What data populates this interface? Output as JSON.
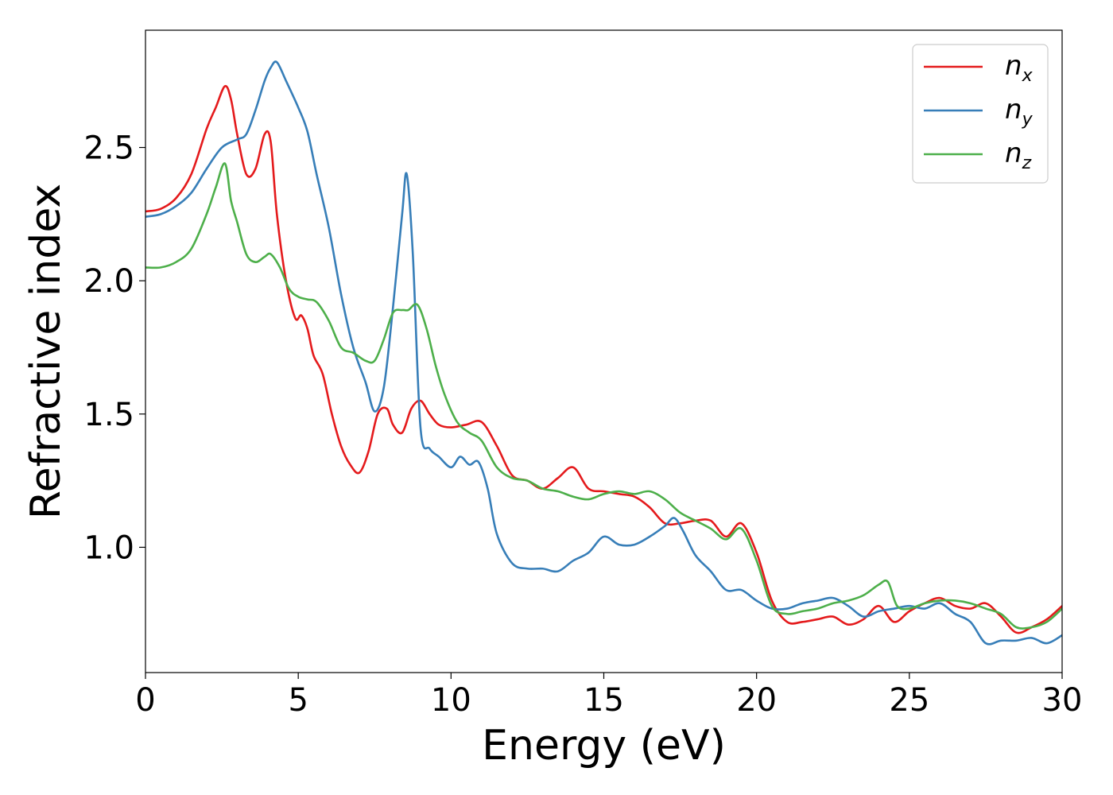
{
  "chart_data": {
    "type": "line",
    "title": "",
    "xlabel": "Energy (eV)",
    "ylabel": "Refractive index",
    "xlim": [
      0,
      30
    ],
    "ylim": [
      0.53,
      2.94
    ],
    "xticks": [
      "0",
      "5",
      "10",
      "15",
      "20",
      "25",
      "30"
    ],
    "xtick_values": [
      0,
      5,
      10,
      15,
      20,
      25,
      30
    ],
    "yticks": [
      "1.0",
      "1.5",
      "2.0",
      "2.5"
    ],
    "ytick_values": [
      1.0,
      1.5,
      2.0,
      2.5
    ],
    "grid": false,
    "legend_position": "top-right",
    "series": [
      {
        "name": "n_x",
        "legend_base": "n",
        "legend_sub": "x",
        "color": "#e41a1c",
        "x": [
          0,
          0.5,
          1,
          1.5,
          2,
          2.3,
          2.6,
          2.8,
          3,
          3.3,
          3.6,
          3.9,
          4.1,
          4.3,
          4.6,
          4.9,
          5.1,
          5.3,
          5.5,
          5.8,
          6.1,
          6.4,
          6.7,
          7.0,
          7.3,
          7.6,
          7.9,
          8.1,
          8.4,
          8.7,
          9.0,
          9.3,
          9.6,
          10.0,
          10.5,
          11.0,
          11.5,
          12.0,
          12.5,
          13.0,
          13.5,
          14.0,
          14.5,
          15.0,
          15.5,
          16.0,
          16.5,
          17.0,
          17.5,
          18.0,
          18.5,
          19.0,
          19.5,
          20.0,
          20.5,
          21.0,
          21.5,
          22.0,
          22.5,
          23.0,
          23.5,
          24.0,
          24.5,
          25.0,
          25.5,
          26.0,
          26.5,
          27.0,
          27.5,
          28.0,
          28.5,
          29.0,
          29.5,
          30.0
        ],
        "y": [
          2.26,
          2.27,
          2.31,
          2.4,
          2.57,
          2.65,
          2.73,
          2.68,
          2.55,
          2.4,
          2.42,
          2.55,
          2.52,
          2.25,
          2.0,
          1.86,
          1.87,
          1.82,
          1.72,
          1.65,
          1.5,
          1.38,
          1.31,
          1.28,
          1.36,
          1.5,
          1.52,
          1.46,
          1.43,
          1.52,
          1.55,
          1.5,
          1.46,
          1.45,
          1.46,
          1.47,
          1.38,
          1.27,
          1.25,
          1.22,
          1.26,
          1.3,
          1.22,
          1.21,
          1.2,
          1.19,
          1.15,
          1.09,
          1.09,
          1.1,
          1.1,
          1.04,
          1.09,
          0.98,
          0.8,
          0.72,
          0.72,
          0.73,
          0.74,
          0.71,
          0.73,
          0.78,
          0.72,
          0.76,
          0.79,
          0.81,
          0.78,
          0.77,
          0.79,
          0.74,
          0.68,
          0.7,
          0.73,
          0.78
        ]
      },
      {
        "name": "n_y",
        "legend_base": "n",
        "legend_sub": "y",
        "color": "#377eb8",
        "x": [
          0,
          0.5,
          1,
          1.5,
          2,
          2.5,
          3.0,
          3.3,
          3.6,
          3.9,
          4.1,
          4.3,
          4.6,
          5.0,
          5.3,
          5.6,
          6.0,
          6.4,
          6.8,
          7.2,
          7.5,
          7.8,
          8.1,
          8.4,
          8.55,
          8.75,
          9.0,
          9.3,
          9.6,
          10.0,
          10.3,
          10.6,
          10.9,
          11.2,
          11.5,
          12.0,
          12.5,
          13.0,
          13.5,
          14.0,
          14.5,
          15.0,
          15.5,
          16.0,
          16.5,
          17.0,
          17.3,
          17.6,
          18.0,
          18.5,
          19.0,
          19.5,
          20.0,
          20.5,
          21.0,
          21.5,
          22.0,
          22.5,
          23.0,
          23.5,
          24.0,
          24.5,
          25.0,
          25.5,
          26.0,
          26.5,
          27.0,
          27.5,
          28.0,
          28.5,
          29.0,
          29.5,
          30.0
        ],
        "y": [
          2.24,
          2.25,
          2.28,
          2.33,
          2.42,
          2.5,
          2.53,
          2.55,
          2.64,
          2.75,
          2.8,
          2.82,
          2.75,
          2.65,
          2.56,
          2.4,
          2.2,
          1.95,
          1.75,
          1.62,
          1.51,
          1.6,
          1.9,
          2.25,
          2.4,
          2.1,
          1.45,
          1.37,
          1.34,
          1.3,
          1.34,
          1.31,
          1.32,
          1.22,
          1.05,
          0.94,
          0.92,
          0.92,
          0.91,
          0.95,
          0.98,
          1.04,
          1.01,
          1.01,
          1.04,
          1.08,
          1.11,
          1.06,
          0.97,
          0.91,
          0.84,
          0.84,
          0.8,
          0.77,
          0.77,
          0.79,
          0.8,
          0.81,
          0.78,
          0.74,
          0.76,
          0.77,
          0.78,
          0.77,
          0.79,
          0.75,
          0.72,
          0.64,
          0.65,
          0.65,
          0.66,
          0.64,
          0.67
        ]
      },
      {
        "name": "n_z",
        "legend_base": "n",
        "legend_sub": "z",
        "color": "#4daf4a",
        "x": [
          0,
          0.5,
          1,
          1.5,
          2,
          2.3,
          2.6,
          2.8,
          3.0,
          3.3,
          3.6,
          3.9,
          4.1,
          4.4,
          4.7,
          5.0,
          5.3,
          5.6,
          6.0,
          6.4,
          6.8,
          7.2,
          7.5,
          7.8,
          8.1,
          8.4,
          8.6,
          8.9,
          9.2,
          9.5,
          9.8,
          10.2,
          10.6,
          11.0,
          11.5,
          12.0,
          12.5,
          13.0,
          13.5,
          14.0,
          14.5,
          15.0,
          15.5,
          16.0,
          16.5,
          17.0,
          17.5,
          18.0,
          18.5,
          19.0,
          19.5,
          20.0,
          20.5,
          21.0,
          21.5,
          22.0,
          22.5,
          23.0,
          23.5,
          24.0,
          24.3,
          24.6,
          25.0,
          25.5,
          26.0,
          26.5,
          27.0,
          27.5,
          28.0,
          28.5,
          29.0,
          29.5,
          30.0
        ],
        "y": [
          2.05,
          2.05,
          2.07,
          2.12,
          2.25,
          2.35,
          2.44,
          2.3,
          2.22,
          2.1,
          2.07,
          2.09,
          2.1,
          2.05,
          1.97,
          1.94,
          1.93,
          1.92,
          1.85,
          1.75,
          1.73,
          1.7,
          1.7,
          1.78,
          1.88,
          1.89,
          1.89,
          1.91,
          1.82,
          1.68,
          1.57,
          1.47,
          1.43,
          1.4,
          1.3,
          1.26,
          1.25,
          1.22,
          1.21,
          1.19,
          1.18,
          1.2,
          1.21,
          1.2,
          1.21,
          1.18,
          1.13,
          1.1,
          1.07,
          1.03,
          1.07,
          0.95,
          0.78,
          0.75,
          0.76,
          0.77,
          0.79,
          0.8,
          0.82,
          0.86,
          0.87,
          0.78,
          0.77,
          0.79,
          0.8,
          0.8,
          0.79,
          0.77,
          0.75,
          0.7,
          0.7,
          0.72,
          0.77
        ]
      }
    ]
  }
}
